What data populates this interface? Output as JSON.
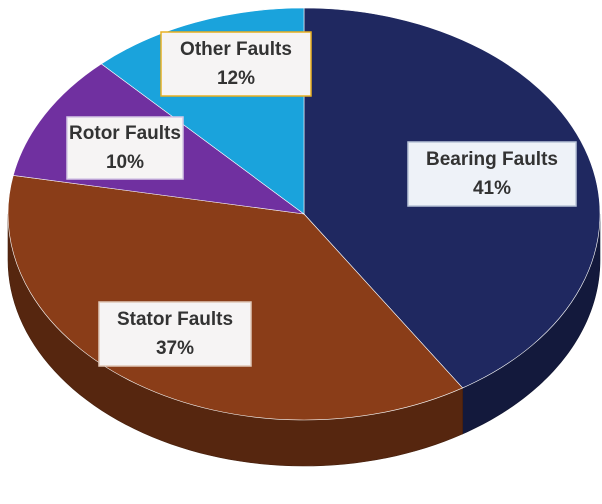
{
  "chart_data": {
    "type": "pie",
    "categories": [
      "Bearing Faults",
      "Stator Faults",
      "Rotor Faults",
      "Other Faults"
    ],
    "values": [
      41,
      37,
      10,
      12
    ],
    "value_labels": [
      "41%",
      "37%",
      "10%",
      "12%"
    ],
    "colors": [
      "#1f2860",
      "#8a3d18",
      "#7030a0",
      "#1aa3dc"
    ]
  }
}
